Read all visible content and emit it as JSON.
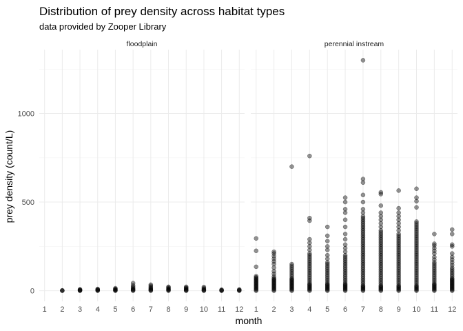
{
  "chart_data": {
    "type": "scatter",
    "title": "Distribution of prey density across habitat types",
    "subtitle": "data provided by Zooper Library",
    "xlabel": "month",
    "ylabel": "prey density (count/L)",
    "x_ticks": [
      1,
      2,
      3,
      4,
      5,
      6,
      7,
      8,
      9,
      10,
      11,
      12
    ],
    "y_ticks": [
      0,
      500,
      1000
    ],
    "xlim": [
      0.7,
      12.3
    ],
    "ylim": [
      -60,
      1360
    ],
    "grid": true,
    "facets": [
      {
        "label": "floodplain",
        "points": [
          {
            "month": 2,
            "values": [
              0,
              1,
              2
            ]
          },
          {
            "month": 3,
            "values": [
              0,
              1,
              3,
              5,
              8
            ]
          },
          {
            "month": 4,
            "values": [
              0,
              2,
              4,
              7,
              10
            ]
          },
          {
            "month": 5,
            "values": [
              0,
              2,
              4,
              7,
              10,
              14
            ]
          },
          {
            "month": 6,
            "values": [
              0,
              3,
              6,
              10,
              15,
              22,
              30,
              43
            ]
          },
          {
            "month": 7,
            "values": [
              0,
              3,
              6,
              10,
              15,
              20,
              27,
              34
            ]
          },
          {
            "month": 8,
            "values": [
              0,
              3,
              6,
              9,
              13,
              18,
              22
            ]
          },
          {
            "month": 9,
            "values": [
              0,
              2,
              5,
              9,
              13,
              17,
              22
            ]
          },
          {
            "month": 10,
            "values": [
              0,
              2,
              5,
              9,
              14,
              21
            ]
          },
          {
            "month": 11,
            "values": [
              0,
              1,
              3,
              6
            ]
          },
          {
            "month": 12,
            "values": [
              0,
              2,
              4,
              7
            ]
          }
        ]
      },
      {
        "label": "perennial instream",
        "points": [
          {
            "month": 1,
            "values": [
              0,
              5,
              10,
              15,
              20,
              25,
              30,
              35,
              40,
              45,
              50,
              55,
              60,
              65,
              70,
              75,
              82,
              135,
              225,
              295
            ]
          },
          {
            "month": 2,
            "values": [
              0,
              5,
              10,
              15,
              20,
              25,
              30,
              35,
              40,
              45,
              50,
              55,
              60,
              65,
              70,
              80,
              95,
              110,
              130,
              150,
              165,
              180,
              195,
              210,
              220
            ]
          },
          {
            "month": 3,
            "values": [
              0,
              5,
              10,
              15,
              20,
              25,
              30,
              35,
              40,
              45,
              50,
              55,
              60,
              65,
              70,
              80,
              90,
              100,
              110,
              120,
              130,
              140,
              150,
              700
            ]
          },
          {
            "month": 4,
            "values": [
              0,
              5,
              10,
              15,
              20,
              25,
              30,
              35,
              40,
              50,
              60,
              70,
              80,
              90,
              100,
              110,
              120,
              130,
              140,
              150,
              160,
              170,
              180,
              190,
              200,
              210,
              230,
              250,
              270,
              290,
              395,
              410,
              760
            ]
          },
          {
            "month": 5,
            "values": [
              0,
              5,
              10,
              15,
              20,
              25,
              30,
              35,
              40,
              50,
              60,
              70,
              80,
              90,
              100,
              110,
              120,
              130,
              140,
              150,
              160,
              180,
              200,
              230,
              250,
              280,
              310,
              360
            ]
          },
          {
            "month": 6,
            "values": [
              0,
              5,
              10,
              15,
              20,
              25,
              30,
              35,
              40,
              50,
              60,
              70,
              80,
              90,
              100,
              110,
              120,
              130,
              140,
              150,
              160,
              170,
              180,
              190,
              200,
              220,
              240,
              260,
              290,
              320,
              360,
              400,
              440,
              460,
              500,
              525
            ]
          },
          {
            "month": 7,
            "values": [
              0,
              5,
              10,
              15,
              20,
              25,
              30,
              40,
              50,
              60,
              70,
              80,
              90,
              100,
              110,
              120,
              130,
              140,
              150,
              160,
              170,
              180,
              190,
              200,
              210,
              220,
              230,
              240,
              250,
              260,
              270,
              280,
              290,
              300,
              310,
              320,
              330,
              340,
              350,
              360,
              370,
              380,
              390,
              400,
              410,
              420,
              440,
              460,
              500,
              540,
              610,
              630,
              1300
            ]
          },
          {
            "month": 8,
            "values": [
              0,
              5,
              10,
              15,
              20,
              25,
              30,
              40,
              50,
              60,
              70,
              80,
              90,
              100,
              110,
              120,
              130,
              140,
              150,
              160,
              170,
              180,
              190,
              200,
              210,
              220,
              230,
              240,
              250,
              260,
              270,
              280,
              290,
              300,
              310,
              320,
              330,
              340,
              360,
              380,
              400,
              420,
              440,
              480,
              545,
              555
            ]
          },
          {
            "month": 9,
            "values": [
              0,
              5,
              10,
              15,
              20,
              25,
              30,
              40,
              50,
              60,
              70,
              80,
              90,
              100,
              110,
              120,
              130,
              140,
              150,
              160,
              170,
              180,
              190,
              200,
              210,
              220,
              230,
              240,
              250,
              260,
              270,
              280,
              290,
              300,
              310,
              320,
              340,
              360,
              380,
              400,
              420,
              440,
              465,
              565
            ]
          },
          {
            "month": 10,
            "values": [
              0,
              5,
              10,
              15,
              20,
              25,
              30,
              40,
              50,
              60,
              70,
              80,
              90,
              100,
              110,
              120,
              130,
              140,
              150,
              160,
              170,
              180,
              190,
              200,
              210,
              220,
              230,
              240,
              250,
              260,
              270,
              280,
              290,
              300,
              310,
              320,
              330,
              340,
              350,
              360,
              370,
              380,
              390,
              470,
              505,
              525,
              575
            ]
          },
          {
            "month": 11,
            "values": [
              0,
              5,
              10,
              15,
              20,
              25,
              30,
              35,
              40,
              50,
              60,
              70,
              80,
              90,
              100,
              110,
              120,
              130,
              140,
              150,
              160,
              175,
              190,
              210,
              225,
              240,
              255,
              265,
              320
            ]
          },
          {
            "month": 12,
            "values": [
              0,
              5,
              10,
              15,
              20,
              25,
              30,
              35,
              40,
              45,
              50,
              55,
              60,
              65,
              70,
              80,
              90,
              100,
              110,
              120,
              130,
              145,
              160,
              175,
              190,
              210,
              250,
              260,
              320,
              345
            ]
          }
        ]
      }
    ]
  }
}
